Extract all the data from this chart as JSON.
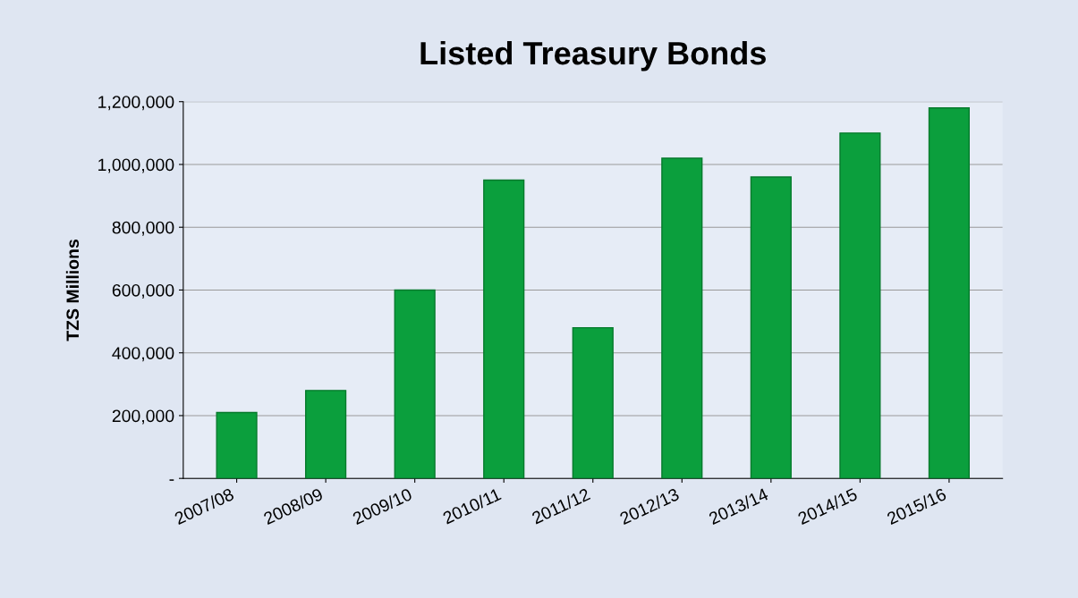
{
  "chart_data": {
    "type": "bar",
    "title": "Listed Treasury Bonds",
    "ylabel": "TZS Millions",
    "categories": [
      "2007/08",
      "2008/09",
      "2009/10",
      "2010/11",
      "2011/12",
      "2012/13",
      "2013/14",
      "2014/15",
      "2015/16"
    ],
    "values": [
      210000,
      280000,
      600000,
      950000,
      480000,
      1020000,
      960000,
      1100000,
      1180000
    ],
    "color": "#0b9f3d",
    "ylim": [
      0,
      1200000
    ],
    "yticks": [
      {
        "value": 0,
        "label": "-"
      },
      {
        "value": 200000,
        "label": "200,000"
      },
      {
        "value": 400000,
        "label": "400,000"
      },
      {
        "value": 600000,
        "label": "600,000"
      },
      {
        "value": 800000,
        "label": "800,000"
      },
      {
        "value": 1000000,
        "label": "1,000,000"
      },
      {
        "value": 1200000,
        "label": "1,200,000"
      }
    ],
    "grid": "y",
    "legend": false
  }
}
